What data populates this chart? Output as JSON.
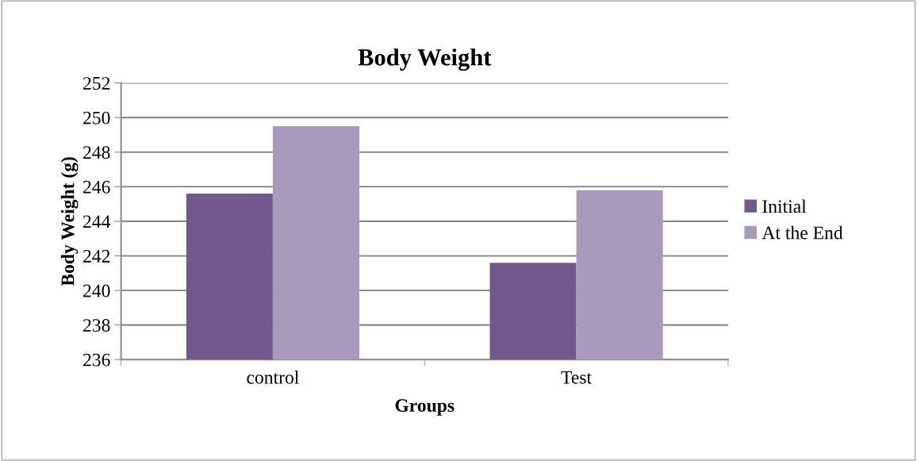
{
  "chart_data": {
    "type": "bar",
    "title": "Body Weight",
    "xlabel": "Groups",
    "ylabel": "Body Weight (g)",
    "categories": [
      "control",
      "Test"
    ],
    "series": [
      {
        "name": "Initial",
        "color": "#72598d",
        "values": [
          245.6,
          241.6
        ]
      },
      {
        "name": "At the End",
        "color": "#a99abd",
        "values": [
          249.5,
          245.8
        ]
      }
    ],
    "ylim": [
      236,
      252
    ],
    "yticks": [
      236,
      238,
      240,
      242,
      244,
      246,
      248,
      250,
      252
    ],
    "grid": "y",
    "legend": "right"
  }
}
